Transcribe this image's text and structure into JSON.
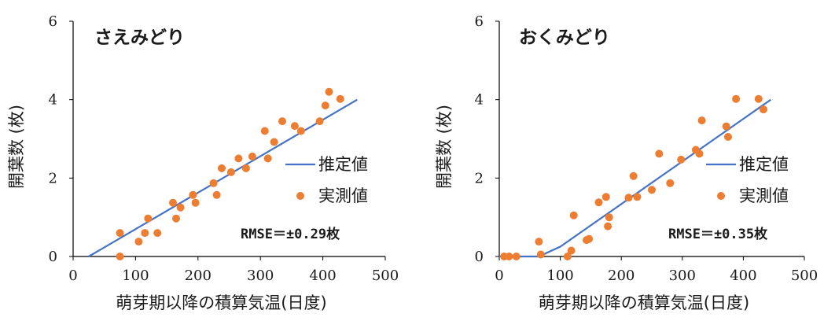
{
  "colors": {
    "line": "#4472C4",
    "point": "#ED7D31",
    "axis": "#000000"
  },
  "chart_data": [
    {
      "type": "scatter",
      "title": "さえみどり",
      "xlabel": "萌芽期以降の積算気温(日度)",
      "ylabel": "開葉数 (枚)",
      "xlim": [
        0,
        500
      ],
      "ylim": [
        0,
        6
      ],
      "xticks": [
        0,
        100,
        200,
        300,
        400,
        500
      ],
      "yticks": [
        0,
        2,
        4,
        6
      ],
      "legend": {
        "placement": "right",
        "line_label": "推定値",
        "point_label": "実測値"
      },
      "annotation": "RMSE＝±0.29枚",
      "series": [
        {
          "name": "推定値",
          "kind": "line",
          "points": [
            [
              25,
              0
            ],
            [
              455,
              4.0
            ]
          ]
        },
        {
          "name": "実測値",
          "kind": "scatter",
          "points": [
            [
              75,
              0.6
            ],
            [
              75,
              0
            ],
            [
              105,
              0.38
            ],
            [
              115,
              0.6
            ],
            [
              120,
              0.97
            ],
            [
              135,
              0.6
            ],
            [
              160,
              1.37
            ],
            [
              165,
              0.97
            ],
            [
              172,
              1.25
            ],
            [
              192,
              1.57
            ],
            [
              196,
              1.37
            ],
            [
              225,
              1.87
            ],
            [
              230,
              1.57
            ],
            [
              238,
              2.25
            ],
            [
              253,
              2.15
            ],
            [
              265,
              2.5
            ],
            [
              277,
              2.25
            ],
            [
              287,
              2.55
            ],
            [
              307,
              3.2
            ],
            [
              312,
              2.5
            ],
            [
              322,
              2.92
            ],
            [
              335,
              3.45
            ],
            [
              355,
              3.33
            ],
            [
              365,
              3.2
            ],
            [
              395,
              3.45
            ],
            [
              404,
              3.85
            ],
            [
              410,
              4.2
            ],
            [
              428,
              4.02
            ]
          ]
        }
      ]
    },
    {
      "type": "scatter",
      "title": "おくみどり",
      "xlabel": "萌芽期以降の積算気温(日度)",
      "ylabel": "開葉数 (枚)",
      "xlim": [
        0,
        500
      ],
      "ylim": [
        0,
        6
      ],
      "xticks": [
        0,
        100,
        200,
        300,
        400,
        500
      ],
      "yticks": [
        0,
        2,
        4,
        6
      ],
      "legend": {
        "placement": "right",
        "line_label": "推定値",
        "point_label": "実測値"
      },
      "annotation": "RMSE＝±0.35枚",
      "series": [
        {
          "name": "推定値",
          "kind": "line",
          "points": [
            [
              0,
              0
            ],
            [
              65,
              0
            ],
            [
              100,
              0.25
            ],
            [
              445,
              4.0
            ]
          ]
        },
        {
          "name": "実測値",
          "kind": "scatter",
          "points": [
            [
              8,
              0
            ],
            [
              16,
              0
            ],
            [
              28,
              0
            ],
            [
              65,
              0.38
            ],
            [
              68,
              0.05
            ],
            [
              112,
              0
            ],
            [
              118,
              0.15
            ],
            [
              122,
              1.05
            ],
            [
              143,
              0.42
            ],
            [
              147,
              0.45
            ],
            [
              163,
              1.38
            ],
            [
              175,
              1.52
            ],
            [
              178,
              0.77
            ],
            [
              180,
              1.0
            ],
            [
              212,
              1.5
            ],
            [
              220,
              2.05
            ],
            [
              226,
              1.52
            ],
            [
              250,
              1.7
            ],
            [
              262,
              2.62
            ],
            [
              280,
              1.87
            ],
            [
              298,
              2.47
            ],
            [
              322,
              2.72
            ],
            [
              328,
              2.62
            ],
            [
              332,
              3.47
            ],
            [
              372,
              3.32
            ],
            [
              375,
              3.05
            ],
            [
              388,
              4.02
            ],
            [
              425,
              4.02
            ],
            [
              433,
              3.75
            ]
          ]
        }
      ]
    }
  ]
}
